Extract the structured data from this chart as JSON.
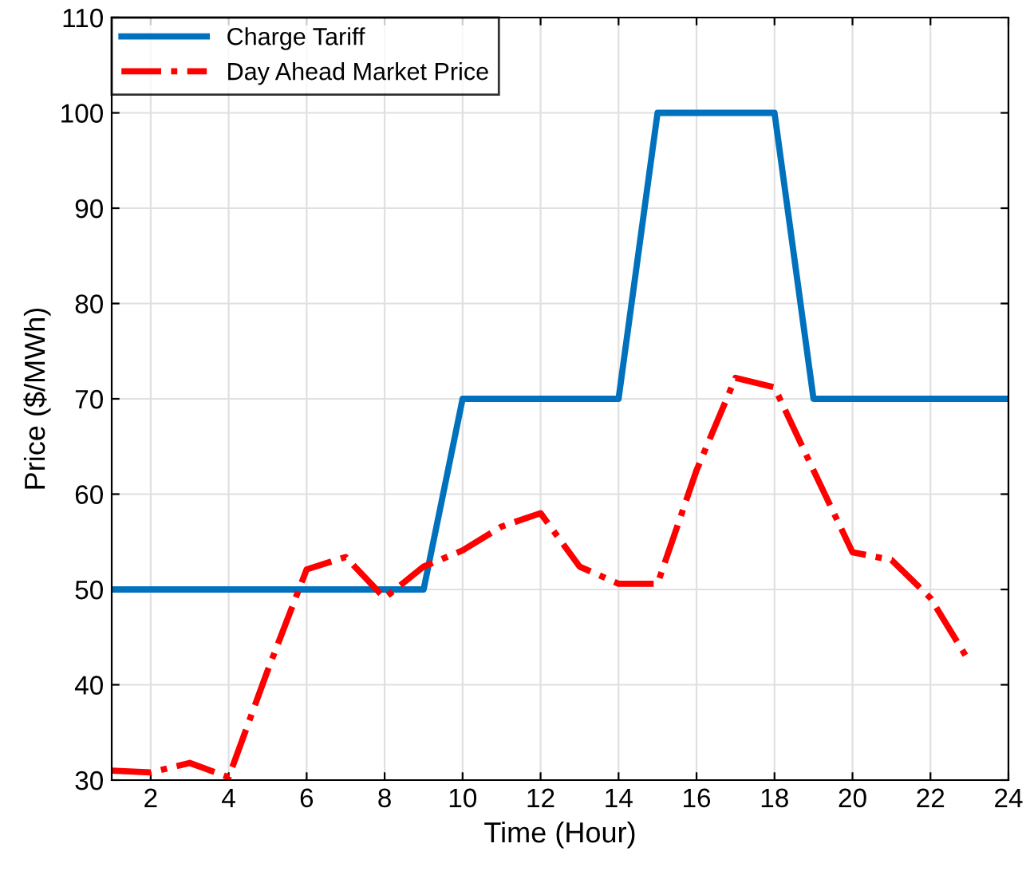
{
  "chart_data": {
    "type": "line",
    "xlabel": "Time (Hour)",
    "ylabel": "Price ($/MWh)",
    "xlim": [
      1,
      24
    ],
    "xticks": [
      2,
      4,
      6,
      8,
      10,
      12,
      14,
      16,
      18,
      20,
      22,
      24
    ],
    "ylim": [
      30,
      110
    ],
    "yticks": [
      30,
      40,
      50,
      60,
      70,
      80,
      90,
      100,
      110
    ],
    "grid": true,
    "legend": "top left",
    "series": [
      {
        "name": "Charge Tariff",
        "color": "#0072bd",
        "line_style": "solid",
        "x": [
          1,
          9,
          10,
          14,
          15,
          18,
          19,
          24
        ],
        "values": [
          50,
          50,
          70,
          70,
          100,
          100,
          70,
          70
        ]
      },
      {
        "name": "Day Ahead Market Price",
        "color": "#ff0000",
        "line_style": "dashdot",
        "x": [
          1,
          2,
          3,
          4,
          5,
          6,
          7,
          8,
          9,
          10,
          11,
          12,
          13,
          14,
          15,
          16,
          17,
          18,
          19,
          20,
          21,
          22,
          23
        ],
        "values": [
          31.0,
          30.8,
          31.8,
          30.3,
          41.5,
          52.1,
          53.4,
          49.1,
          52.4,
          54.1,
          56.6,
          58.0,
          52.4,
          50.6,
          50.6,
          62.5,
          72.2,
          71.2,
          62.5,
          53.9,
          53.1,
          49.1,
          42.4
        ]
      }
    ]
  }
}
